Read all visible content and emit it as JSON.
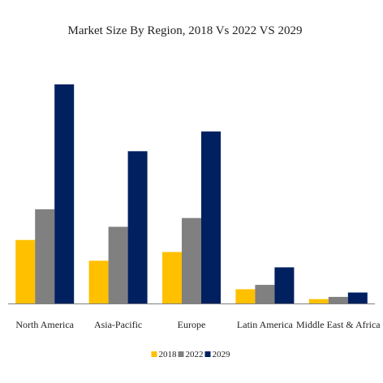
{
  "chart_data": {
    "type": "bar",
    "title": "Market Size By Region, 2018 Vs 2022 VS 2029",
    "xlabel": "",
    "ylabel": "",
    "categories": [
      "North America",
      "Asia-Pacific",
      "Europe",
      "Latin America",
      "Middle East & Africa"
    ],
    "series": [
      {
        "name": "2018",
        "color": "#FFC000",
        "values": [
          29,
          19.5,
          23.5,
          6.5,
          2
        ]
      },
      {
        "name": "2022",
        "color": "#808080",
        "values": [
          43,
          35,
          39,
          8.5,
          3
        ]
      },
      {
        "name": "2029",
        "color": "#002060",
        "values": [
          100,
          69.5,
          78.5,
          16.5,
          5
        ]
      }
    ],
    "ylim": [
      0,
      100
    ],
    "grid": false,
    "legend_position": "bottom-center",
    "axis_color": "#808080"
  }
}
